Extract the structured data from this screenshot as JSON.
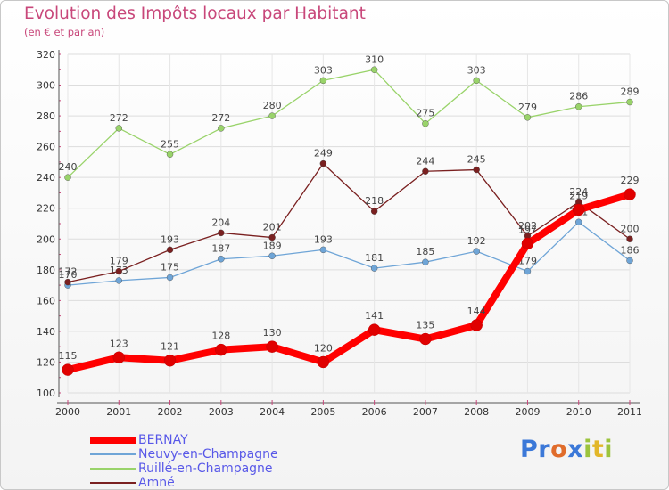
{
  "header": {
    "title": "Evolution des Impôts locaux par Habitant",
    "subtitle": "(en € et par an)"
  },
  "logo": {
    "text": "Proxiti",
    "letters": [
      {
        "ch": "P",
        "color": "#3b78d8"
      },
      {
        "ch": "r",
        "color": "#3b78d8"
      },
      {
        "ch": "o",
        "color": "#e06c2b"
      },
      {
        "ch": "x",
        "color": "#3b78d8"
      },
      {
        "ch": "i",
        "color": "#9cc43d"
      },
      {
        "ch": "t",
        "color": "#e2b72a"
      },
      {
        "ch": "i",
        "color": "#9cc43d"
      }
    ]
  },
  "chart_data": {
    "type": "line",
    "title": "Evolution des Impôts locaux par Habitant",
    "subtitle": "(en € et par an)",
    "xlabel": "",
    "ylabel": "",
    "ylim": [
      100,
      320
    ],
    "yticks": [
      100,
      120,
      140,
      160,
      180,
      200,
      220,
      240,
      260,
      280,
      300,
      320
    ],
    "grid": true,
    "legend_position": "bottom-left",
    "categories": [
      "2000",
      "2001",
      "2002",
      "2003",
      "2004",
      "2005",
      "2006",
      "2007",
      "2008",
      "2009",
      "2010",
      "2011"
    ],
    "series": [
      {
        "name": "BERNAY",
        "color": "#ff0000",
        "values": [
          115,
          123,
          121,
          128,
          130,
          120,
          141,
          135,
          144,
          197,
          219,
          229
        ]
      },
      {
        "name": "Neuvy-en-Champagne",
        "color": "#6fa5d7",
        "values": [
          170,
          173,
          175,
          187,
          189,
          193,
          181,
          185,
          192,
          179,
          211,
          186
        ]
      },
      {
        "name": "Ruillé-en-Champagne",
        "color": "#99d36a",
        "values": [
          240,
          272,
          255,
          272,
          280,
          303,
          310,
          275,
          303,
          279,
          286,
          289
        ]
      },
      {
        "name": "Amné",
        "color": "#7a2020",
        "values": [
          172,
          179,
          193,
          204,
          201,
          249,
          218,
          244,
          245,
          202,
          224,
          200
        ]
      }
    ],
    "labels": [
      [
        115,
        123,
        121,
        128,
        130,
        120,
        141,
        135,
        144,
        197,
        219,
        229
      ],
      [
        170,
        173,
        175,
        187,
        189,
        193,
        181,
        185,
        192,
        179,
        211,
        186
      ],
      [
        240,
        272,
        255,
        272,
        280,
        303,
        310,
        275,
        303,
        279,
        286,
        289
      ],
      [
        172,
        179,
        193,
        204,
        201,
        249,
        218,
        244,
        245,
        202,
        224,
        200
      ]
    ]
  }
}
